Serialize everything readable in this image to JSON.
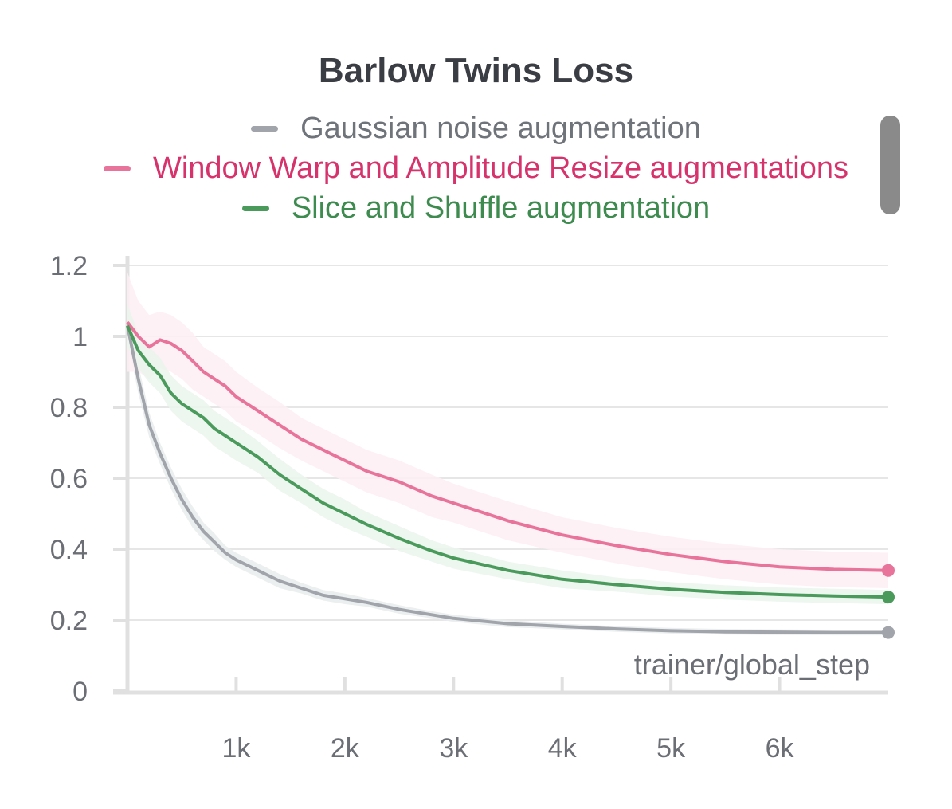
{
  "chart_data": {
    "type": "line",
    "title": "Barlow Twins Loss",
    "xlabel": "trainer/global_step",
    "ylabel": "",
    "xlim": [
      0,
      7000
    ],
    "ylim": [
      0,
      1.2
    ],
    "x_ticks": [
      {
        "value": 1000,
        "label": "1k"
      },
      {
        "value": 2000,
        "label": "2k"
      },
      {
        "value": 3000,
        "label": "3k"
      },
      {
        "value": 4000,
        "label": "4k"
      },
      {
        "value": 5000,
        "label": "5k"
      },
      {
        "value": 6000,
        "label": "6k"
      }
    ],
    "y_ticks": [
      {
        "value": 0,
        "label": "0"
      },
      {
        "value": 0.2,
        "label": "0.2"
      },
      {
        "value": 0.4,
        "label": "0.4"
      },
      {
        "value": 0.6,
        "label": "0.6"
      },
      {
        "value": 0.8,
        "label": "0.8"
      },
      {
        "value": 1.0,
        "label": "1"
      },
      {
        "value": 1.2,
        "label": "1.2"
      }
    ],
    "grid": true,
    "legend_position": "top-center",
    "x": [
      0,
      100,
      200,
      300,
      400,
      500,
      600,
      700,
      800,
      900,
      1000,
      1200,
      1400,
      1600,
      1800,
      2000,
      2200,
      2500,
      2800,
      3000,
      3500,
      4000,
      4500,
      5000,
      5500,
      6000,
      6500,
      7000
    ],
    "series": [
      {
        "name": "Gaussian noise augmentation",
        "color": "#a1a5ab",
        "band_color": "#e9ecec",
        "values": [
          1.03,
          0.88,
          0.75,
          0.67,
          0.6,
          0.54,
          0.49,
          0.45,
          0.42,
          0.39,
          0.37,
          0.34,
          0.31,
          0.29,
          0.27,
          0.26,
          0.25,
          0.23,
          0.215,
          0.205,
          0.19,
          0.182,
          0.175,
          0.17,
          0.167,
          0.166,
          0.165,
          0.165
        ],
        "band": [
          0.04,
          0.04,
          0.035,
          0.03,
          0.03,
          0.03,
          0.03,
          0.025,
          0.025,
          0.02,
          0.02,
          0.02,
          0.02,
          0.015,
          0.015,
          0.015,
          0.012,
          0.012,
          0.01,
          0.01,
          0.01,
          0.008,
          0.008,
          0.008,
          0.008,
          0.008,
          0.008,
          0.008
        ]
      },
      {
        "name": "Window Warp and Amplitude Resize augmentations",
        "color": "#e8739b",
        "band_color": "#fdeff3",
        "values": [
          1.04,
          1.0,
          0.97,
          0.99,
          0.98,
          0.96,
          0.93,
          0.9,
          0.88,
          0.86,
          0.83,
          0.79,
          0.75,
          0.71,
          0.68,
          0.65,
          0.62,
          0.59,
          0.55,
          0.53,
          0.48,
          0.44,
          0.41,
          0.385,
          0.365,
          0.35,
          0.343,
          0.34
        ],
        "band": [
          0.14,
          0.1,
          0.09,
          0.08,
          0.08,
          0.08,
          0.08,
          0.07,
          0.07,
          0.07,
          0.07,
          0.065,
          0.065,
          0.06,
          0.06,
          0.06,
          0.06,
          0.06,
          0.06,
          0.055,
          0.055,
          0.05,
          0.05,
          0.05,
          0.05,
          0.05,
          0.05,
          0.05
        ]
      },
      {
        "name": "Slice and Shuffle augmentation",
        "color": "#4a9a5c",
        "band_color": "#eaf4ec",
        "values": [
          1.03,
          0.96,
          0.92,
          0.89,
          0.84,
          0.81,
          0.79,
          0.77,
          0.74,
          0.72,
          0.7,
          0.66,
          0.61,
          0.57,
          0.53,
          0.5,
          0.47,
          0.43,
          0.395,
          0.375,
          0.34,
          0.315,
          0.3,
          0.287,
          0.278,
          0.272,
          0.268,
          0.265
        ],
        "band": [
          0.06,
          0.05,
          0.05,
          0.05,
          0.05,
          0.05,
          0.05,
          0.05,
          0.05,
          0.05,
          0.05,
          0.045,
          0.045,
          0.04,
          0.04,
          0.04,
          0.035,
          0.035,
          0.03,
          0.03,
          0.025,
          0.025,
          0.02,
          0.02,
          0.02,
          0.02,
          0.02,
          0.02
        ]
      }
    ]
  }
}
